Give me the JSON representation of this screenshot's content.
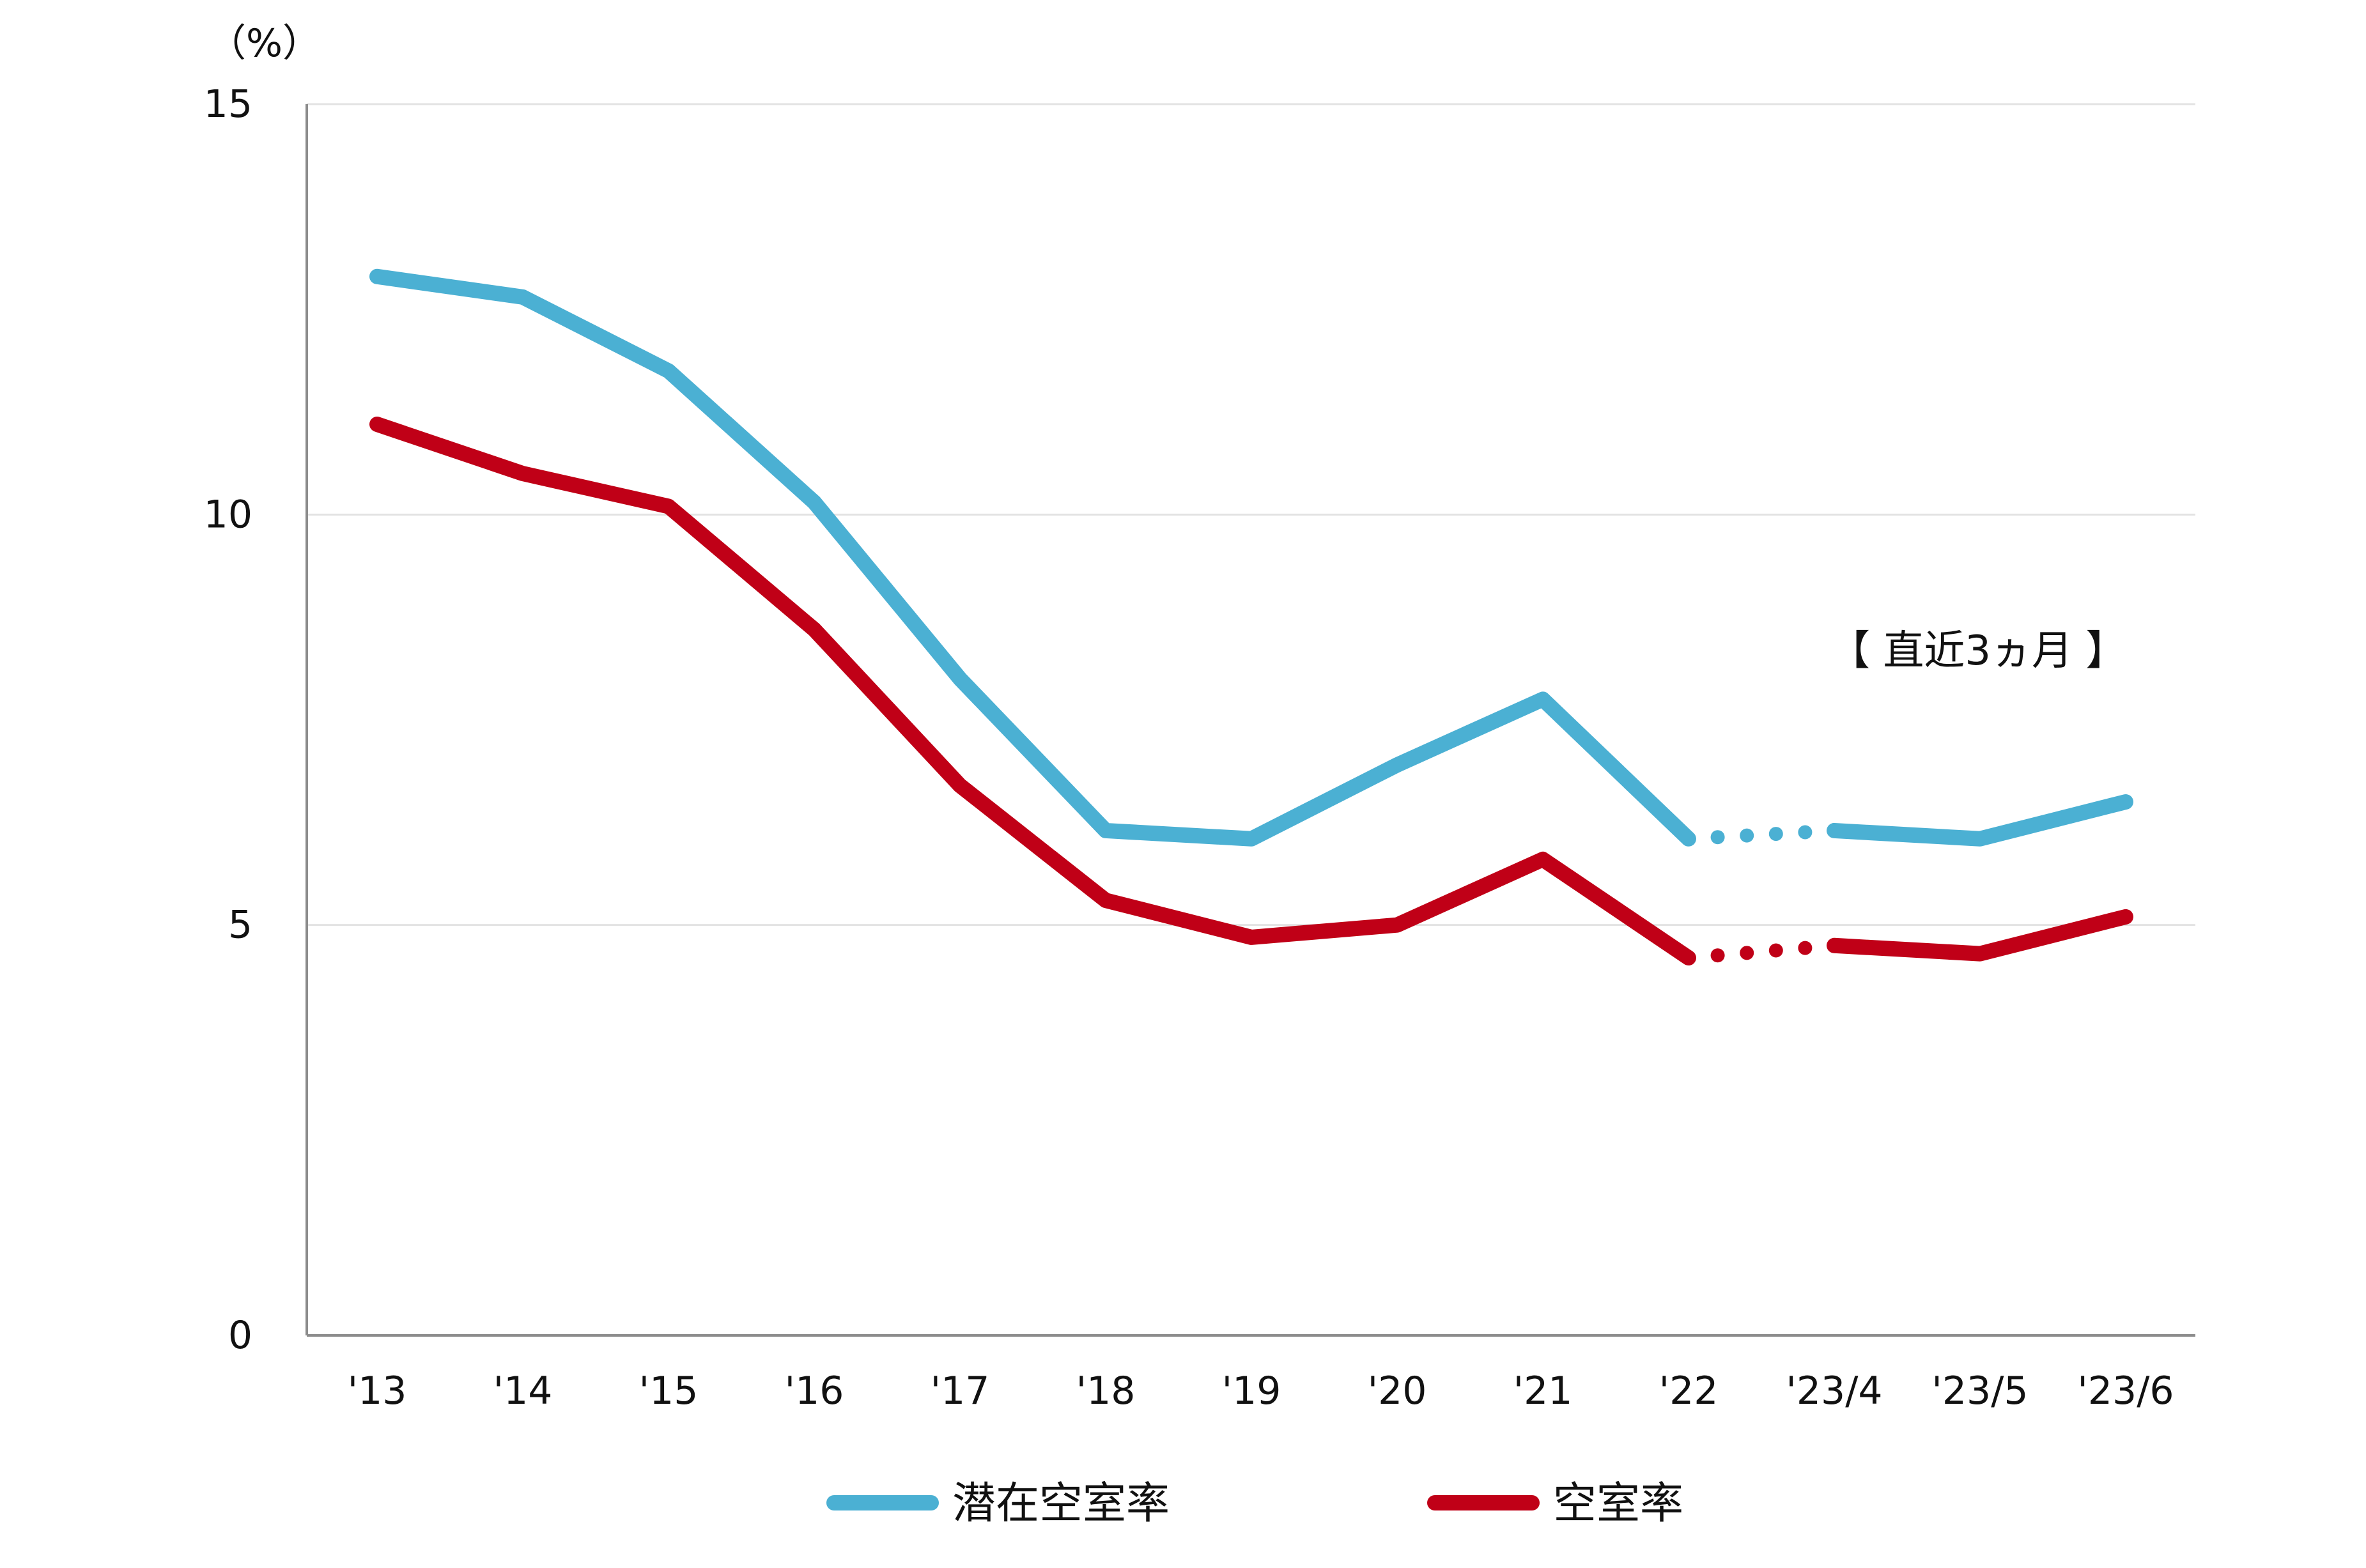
{
  "chart_data": {
    "type": "line",
    "y_unit": "（%）",
    "annotation": "【 直近3ヵ月 】",
    "categories": [
      "'13",
      "'14",
      "'15",
      "'16",
      "'17",
      "'18",
      "'19",
      "'20",
      "'21",
      "'22",
      "'23/4",
      "'23/5",
      "'23/6"
    ],
    "ylim": [
      0,
      15
    ],
    "yticks": [
      "0",
      "5",
      "10",
      "15"
    ],
    "grid": true,
    "legend_position": "bottom",
    "series": [
      {
        "name": "潜在空室率",
        "color": "#4bb0d3",
        "values": [
          12.9,
          12.65,
          11.75,
          10.15,
          8.0,
          6.15,
          6.05,
          6.95,
          7.75,
          6.05,
          6.15,
          6.05,
          6.5
        ]
      },
      {
        "name": "空室率",
        "color": "#c00017",
        "values": [
          11.1,
          10.5,
          10.1,
          8.6,
          6.7,
          5.3,
          4.85,
          5.0,
          5.8,
          4.6,
          4.75,
          4.65,
          5.1
        ]
      }
    ]
  }
}
